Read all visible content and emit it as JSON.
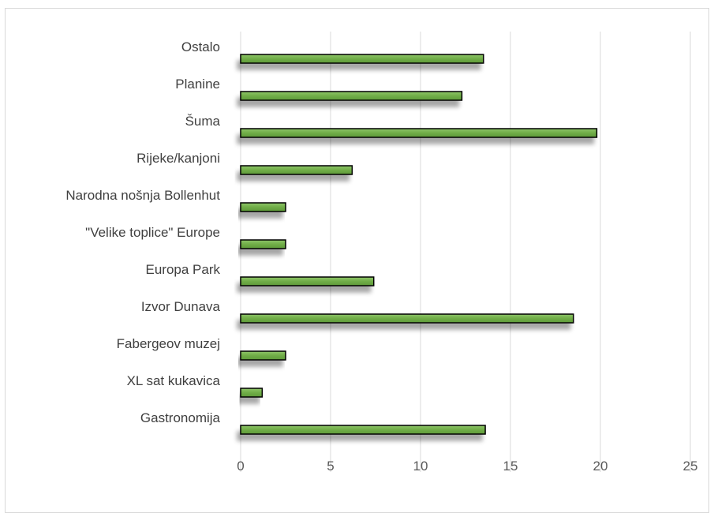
{
  "chart_data": {
    "type": "bar",
    "orientation": "horizontal",
    "categories": [
      "Ostalo",
      "Planine",
      "Šuma",
      "Rijeke/kanjoni",
      "Narodna nošnja Bollenhut",
      "\"Velike toplice\" Europe",
      "Europa Park",
      "Izvor Dunava",
      "Fabergeov muzej",
      "XL sat kukavica",
      "Gastronomija"
    ],
    "values": [
      13.5,
      12.3,
      19.8,
      6.2,
      2.5,
      2.5,
      7.4,
      18.5,
      2.5,
      1.2,
      13.6
    ],
    "xlim": [
      0,
      25
    ],
    "xticks": [
      "0",
      "5",
      "10",
      "15",
      "20",
      "25"
    ],
    "grid": "vertical",
    "legend": "none",
    "colors": {
      "bar_fill": "#70ad47",
      "bar_fill_light": "#8fc66a",
      "bar_edge": "#000000",
      "gridline": "#d9d9d9"
    }
  }
}
